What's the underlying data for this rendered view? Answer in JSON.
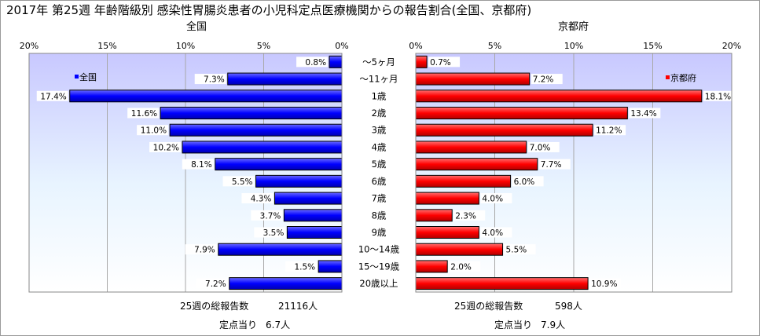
{
  "chart_data": {
    "type": "bar",
    "title": "2017年 第25週 年齢階級別 感染性胃腸炎患者の小児科定点医療機関からの報告割合(全国、京都府)",
    "categories": [
      "～5ヶ月",
      "～11ヶ月",
      "1歳",
      "2歳",
      "3歳",
      "4歳",
      "5歳",
      "6歳",
      "7歳",
      "8歳",
      "9歳",
      "10～14歳",
      "15～19歳",
      "20歳以上"
    ],
    "x_ticks": [
      "0%",
      "5%",
      "10%",
      "15%",
      "20%"
    ],
    "xlim": [
      0,
      20
    ],
    "panels": [
      {
        "name": "全国",
        "color": "#0000ff",
        "values": [
          0.8,
          7.3,
          17.4,
          11.6,
          11.0,
          10.2,
          8.1,
          5.5,
          4.3,
          3.7,
          3.5,
          7.9,
          1.5,
          7.2
        ],
        "labels": [
          "0.8%",
          "7.3%",
          "17.4%",
          "11.6%",
          "11.0%",
          "10.2%",
          "8.1%",
          "5.5%",
          "4.3%",
          "3.7%",
          "3.5%",
          "7.9%",
          "1.5%",
          "7.2%"
        ],
        "legend": "全国",
        "footer": {
          "total_label": "25週の総報告数",
          "total_value": "21116人",
          "per_label": "定点当り",
          "per_value": "6.7人"
        }
      },
      {
        "name": "京都府",
        "color": "#ff0000",
        "values": [
          0.7,
          7.2,
          18.1,
          13.4,
          11.2,
          7.0,
          7.7,
          6.0,
          4.0,
          2.3,
          4.0,
          5.5,
          2.0,
          10.9
        ],
        "labels": [
          "0.7%",
          "7.2%",
          "18.1%",
          "13.4%",
          "11.2%",
          "7.0%",
          "7.7%",
          "6.0%",
          "4.0%",
          "2.3%",
          "4.0%",
          "5.5%",
          "2.0%",
          "10.9%"
        ],
        "legend": "京都府",
        "footer": {
          "total_label": "25週の総報告数",
          "total_value": "598人",
          "per_label": "定点当り",
          "per_value": "7.9人"
        }
      }
    ],
    "grid": true,
    "legend_position": "top"
  }
}
